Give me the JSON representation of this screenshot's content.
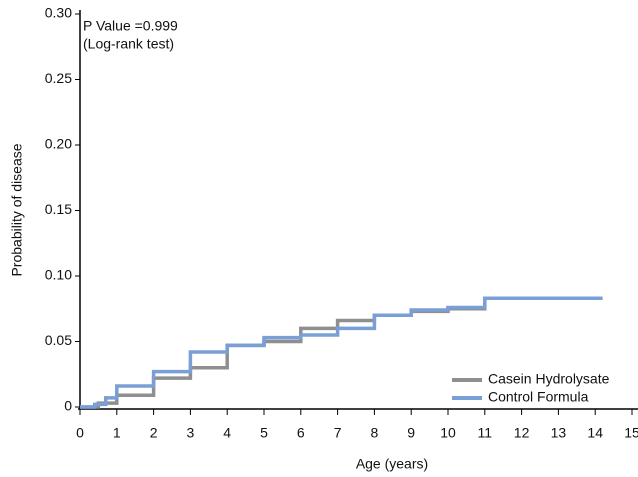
{
  "chart_data": {
    "type": "step",
    "x_label": "Age (years)",
    "y_label": "Probability of disease",
    "annotations": [
      "P Value =0.999",
      "(Log-rank test)"
    ],
    "xlim": [
      0,
      15
    ],
    "xticks": [
      0,
      1,
      2,
      3,
      4,
      5,
      6,
      7,
      8,
      9,
      10,
      11,
      12,
      13,
      14,
      15
    ],
    "ylim": [
      0,
      0.3
    ],
    "yticks": [
      0,
      0.05,
      {
        "value": 0.1,
        "label": "0.10"
      },
      0.15,
      {
        "value": 0.2,
        "label": "0.20"
      },
      0.25,
      {
        "value": 0.3,
        "label": "0.30"
      }
    ],
    "legend": "lower right",
    "series": [
      {
        "name": "Casein Hydrolysate",
        "color": "#8f8f8f",
        "x": [
          0,
          0.5,
          1,
          2,
          3,
          4,
          5,
          6,
          7,
          8,
          9,
          10,
          11,
          14.2
        ],
        "values": [
          0,
          0.003,
          0.009,
          0.022,
          0.03,
          0.047,
          0.05,
          0.06,
          0.066,
          0.07,
          0.073,
          0.075,
          0.083,
          0.083
        ]
      },
      {
        "name": "Control Formula",
        "color": "#7a9fd6",
        "x": [
          0,
          0.4,
          0.7,
          1,
          2,
          3,
          4,
          5,
          6,
          7,
          8,
          9,
          10,
          11,
          14.2
        ],
        "values": [
          0,
          0.002,
          0.007,
          0.016,
          0.027,
          0.042,
          0.047,
          0.053,
          0.055,
          0.06,
          0.07,
          0.074,
          0.076,
          0.083,
          0.083
        ]
      }
    ]
  }
}
